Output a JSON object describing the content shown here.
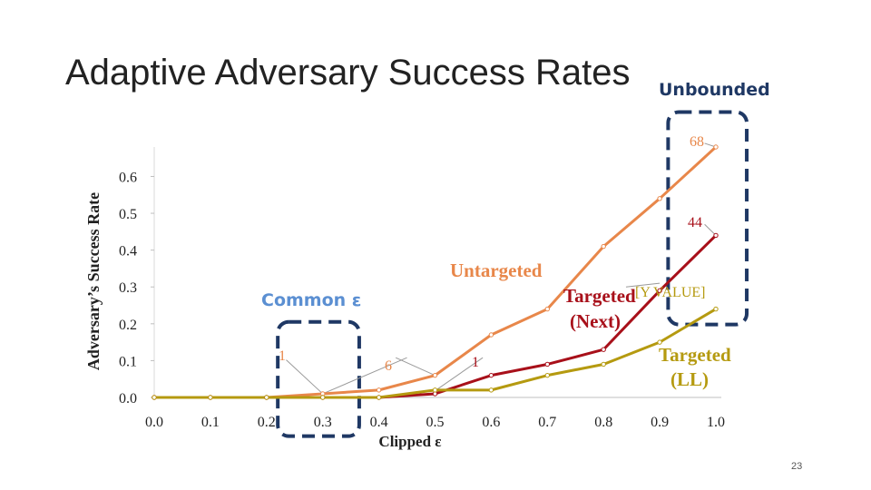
{
  "slide": {
    "title": "Adaptive Adversary Success Rates",
    "unbounded_label": "Unbounded",
    "common_label": "Common ε",
    "page_number": "23"
  },
  "chart_data": {
    "type": "line",
    "title": "",
    "xlabel": "Clipped ε",
    "ylabel": "Adversary’s Success Rate",
    "x": [
      0.0,
      0.1,
      0.2,
      0.3,
      0.4,
      0.5,
      0.6,
      0.7,
      0.8,
      0.9,
      1.0
    ],
    "x_tick_labels": [
      "0.0",
      "0.1",
      "0.2",
      "0.3",
      "0.4",
      "0.5",
      "0.6",
      "0.7",
      "0.8",
      "0.9",
      "1.0"
    ],
    "y_tick_labels": [
      "0.0",
      "0.1",
      "0.2",
      "0.3",
      "0.4",
      "0.5",
      "0.6"
    ],
    "xlim": [
      0.0,
      1.0
    ],
    "ylim": [
      0.0,
      0.6
    ],
    "grid": false,
    "colors": {
      "untargeted": "#e8874a",
      "targeted_next": "#a8101a",
      "targeted_ll": "#b59a10",
      "dashed_box": "#1f3864",
      "leader": "#9a9a9a"
    },
    "series": [
      {
        "name": "Untargeted",
        "values": [
          0.0,
          0.0,
          0.0,
          0.01,
          0.02,
          0.06,
          0.17,
          0.24,
          0.41,
          0.54,
          0.68
        ]
      },
      {
        "name": "Targeted (Next)",
        "values": [
          0.0,
          0.0,
          0.0,
          0.0,
          0.0,
          0.01,
          0.06,
          0.09,
          0.13,
          0.29,
          0.44
        ]
      },
      {
        "name": "Targeted (LL)",
        "values": [
          0.0,
          0.0,
          0.0,
          0.0,
          0.0,
          0.02,
          0.02,
          0.06,
          0.09,
          0.15,
          0.24
        ]
      }
    ],
    "series_labels": {
      "untargeted": "Untargeted",
      "targeted_next_line1": "Targeted",
      "targeted_next_line2": "(Next)",
      "targeted_ll_line1": "Targeted",
      "targeted_ll_line2": "(LL)"
    },
    "data_labels": {
      "untargeted_end": "68",
      "targeted_next_end": "44",
      "targeted_ll_end": "[Y VALUE]",
      "common_a": "1",
      "common_b": "6",
      "common_c": "1"
    }
  }
}
